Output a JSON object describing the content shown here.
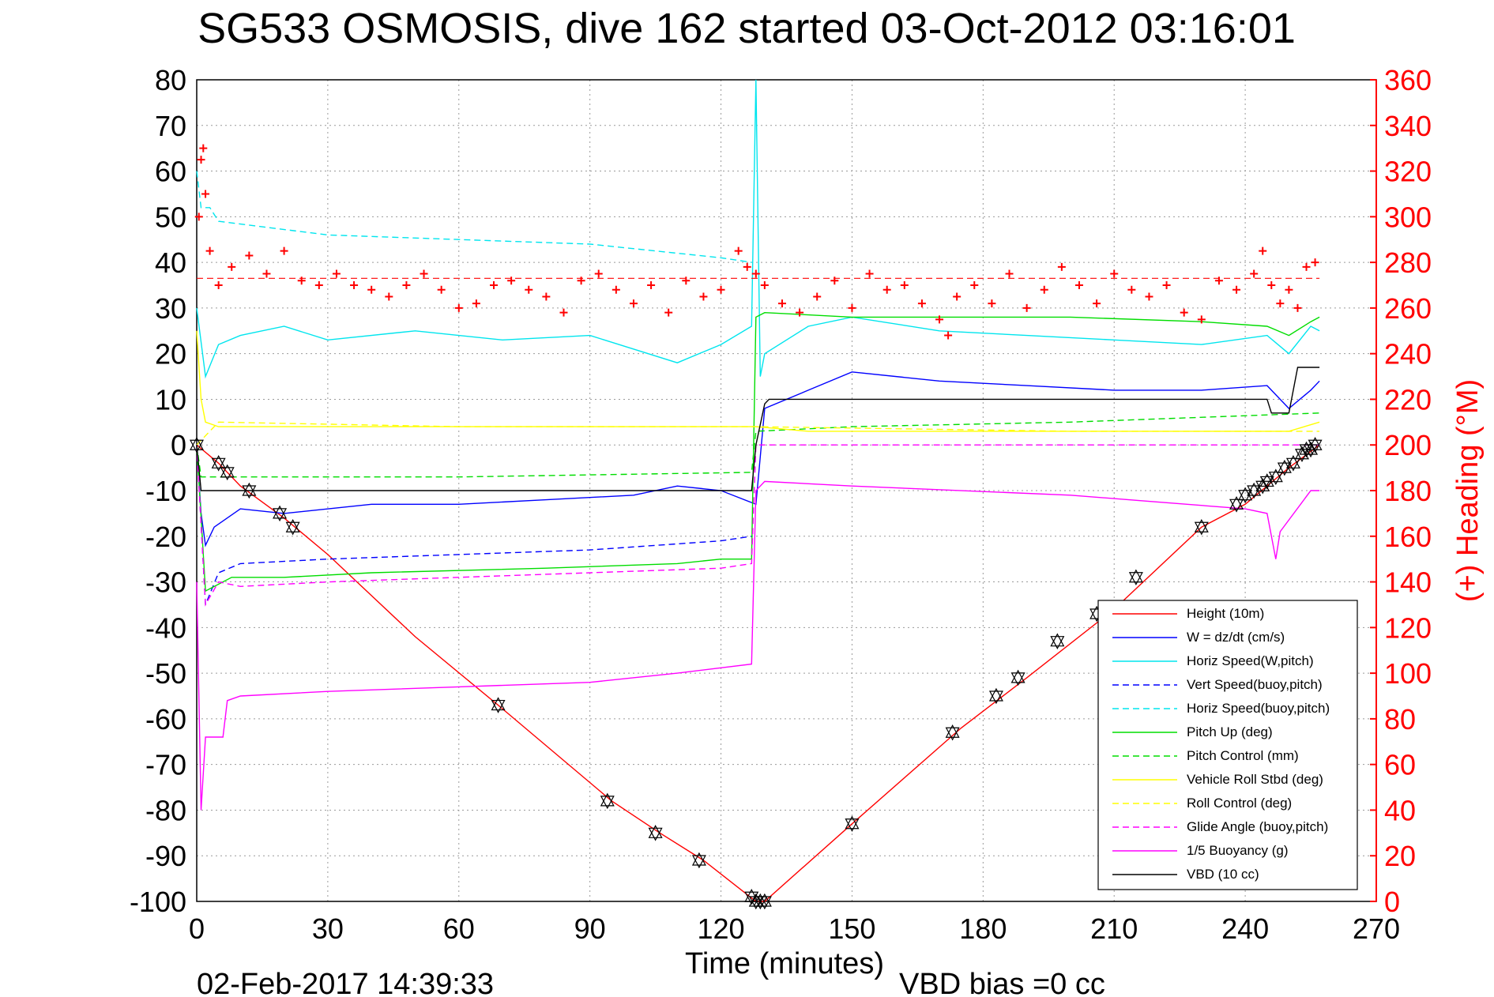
{
  "chart_data": {
    "type": "line",
    "title": "SG533 OSMOSIS, dive 162 started 03-Oct-2012 03:16:01",
    "xlabel": "Time (minutes)",
    "ylabel_right": "(+) Heading (°M)",
    "footer_date": "02-Feb-2017 14:39:33",
    "footer_bias": "VBD bias =0 cc",
    "xlim": [
      0,
      270
    ],
    "ylim": [
      -100,
      80
    ],
    "ylim_right": [
      0,
      360
    ],
    "xticks": [
      "0",
      "30",
      "60",
      "90",
      "120",
      "150",
      "180",
      "210",
      "240",
      "270"
    ],
    "yticks": [
      "80",
      "70",
      "60",
      "50",
      "40",
      "30",
      "20",
      "10",
      "0",
      "-10",
      "-20",
      "-30",
      "-40",
      "-50",
      "-60",
      "-70",
      "-80",
      "-90",
      "-100"
    ],
    "yticks_right": [
      "360",
      "340",
      "320",
      "300",
      "280",
      "260",
      "240",
      "220",
      "200",
      "180",
      "160",
      "140",
      "120",
      "100",
      "80",
      "60",
      "40",
      "20",
      "0"
    ],
    "grid": true,
    "legend_position": "bottom-right",
    "series": [
      {
        "name": "Height (10m)",
        "color": "#ff0000",
        "style": "solid",
        "x": [
          0,
          5,
          10,
          20,
          30,
          50,
          69,
          95,
          106,
          116,
          128,
          130,
          150,
          175,
          190,
          210,
          230,
          240,
          250,
          257
        ],
        "y": [
          0,
          -4,
          -9,
          -16,
          -24,
          -42,
          -57,
          -78,
          -85,
          -91,
          -100,
          -100,
          -83,
          -62,
          -51,
          -36,
          -18,
          -13,
          -5,
          0
        ]
      },
      {
        "name": "W = dz/dt (cm/s)",
        "color": "#0000ff",
        "style": "solid",
        "x": [
          0,
          1,
          2,
          4,
          10,
          20,
          40,
          60,
          80,
          100,
          110,
          120,
          128,
          130,
          140,
          150,
          170,
          190,
          210,
          230,
          245,
          250,
          255,
          257
        ],
        "y": [
          0,
          -15,
          -22,
          -18,
          -14,
          -15,
          -13,
          -13,
          -12,
          -11,
          -9,
          -10,
          -13,
          8,
          12,
          16,
          14,
          13,
          12,
          12,
          13,
          8,
          12,
          14
        ]
      },
      {
        "name": "Horiz Speed(W,pitch)",
        "color": "#00e5ee",
        "style": "solid",
        "x": [
          0,
          2,
          5,
          10,
          20,
          30,
          50,
          70,
          90,
          110,
          120,
          127,
          128,
          129,
          130,
          140,
          150,
          170,
          190,
          210,
          230,
          245,
          250,
          255,
          257
        ],
        "y": [
          30,
          15,
          22,
          24,
          26,
          23,
          25,
          23,
          24,
          18,
          22,
          26,
          80,
          15,
          20,
          26,
          28,
          25,
          24,
          23,
          22,
          24,
          20,
          26,
          25
        ]
      },
      {
        "name": "Vert Speed(buoy,pitch)",
        "color": "#0000ff",
        "style": "dashed",
        "x": [
          0,
          2,
          5,
          10,
          30,
          60,
          90,
          120,
          127
        ],
        "y": [
          0,
          -35,
          -28,
          -26,
          -25,
          -24,
          -23,
          -21,
          -20
        ]
      },
      {
        "name": "Horiz Speed(buoy,pitch)",
        "color": "#00e5ee",
        "style": "dashed",
        "x": [
          0,
          1,
          3,
          5,
          30,
          60,
          90,
          120,
          127
        ],
        "y": [
          60,
          52,
          52,
          49,
          46,
          45,
          44,
          41,
          40
        ]
      },
      {
        "name": "Pitch Up (deg)",
        "color": "#00dd00",
        "style": "solid",
        "x": [
          0,
          2,
          8,
          20,
          40,
          80,
          110,
          120,
          127,
          128,
          130,
          150,
          175,
          200,
          230,
          245,
          250,
          255,
          257
        ],
        "y": [
          0,
          -32,
          -29,
          -29,
          -28,
          -27,
          -26,
          -25,
          -25,
          28,
          29,
          28,
          28,
          28,
          27,
          26,
          24,
          27,
          28
        ]
      },
      {
        "name": "Pitch Control (mm)",
        "color": "#00dd00",
        "style": "dashed",
        "x": [
          0,
          1,
          2,
          8,
          60,
          127,
          128,
          150,
          200,
          257
        ],
        "y": [
          0,
          -7,
          -7,
          -7,
          -7,
          -6,
          3,
          4,
          5,
          7
        ]
      },
      {
        "name": "Vehicle Roll Stbd (deg)",
        "color": "#ffff00",
        "style": "solid",
        "x": [
          0,
          1,
          2,
          5,
          20,
          60,
          120,
          127,
          128,
          140,
          200,
          250,
          257
        ],
        "y": [
          25,
          10,
          5,
          4,
          4,
          4,
          4,
          4,
          4,
          3,
          3,
          3,
          5
        ]
      },
      {
        "name": "Roll Control (deg)",
        "color": "#ffff00",
        "style": "dashed",
        "x": [
          0,
          5,
          60,
          127,
          128,
          200,
          257
        ],
        "y": [
          0,
          5,
          4,
          4,
          4,
          3,
          3
        ]
      },
      {
        "name": "Glide Angle (buoy,pitch)",
        "color": "#ff00ff",
        "style": "dashed",
        "x": [
          0,
          2,
          5,
          10,
          30,
          60,
          90,
          120,
          127,
          128,
          257
        ],
        "y": [
          0,
          -35,
          -30,
          -31,
          -30,
          -29,
          -28,
          -27,
          -26,
          0,
          0
        ]
      },
      {
        "name": "1/5 Buoyancy (g)",
        "color": "#ff00ff",
        "style": "solid",
        "x": [
          0,
          1,
          2,
          6,
          7,
          10,
          30,
          60,
          90,
          110,
          127,
          128,
          130,
          150,
          200,
          240,
          245,
          247,
          248,
          255,
          257
        ],
        "y": [
          -30,
          -80,
          -64,
          -64,
          -56,
          -55,
          -54,
          -53,
          -52,
          -50,
          -48,
          -10,
          -8,
          -9,
          -11,
          -14,
          -15,
          -25,
          -19,
          -10,
          -10
        ]
      },
      {
        "name": "VBD (10 cc)",
        "color": "#000000",
        "style": "solid",
        "x": [
          0,
          1,
          2,
          127,
          128,
          130,
          131,
          245,
          246,
          250,
          252,
          257
        ],
        "y": [
          0,
          -10,
          -10,
          -10,
          0,
          9,
          10,
          10,
          7,
          7,
          17,
          17
        ]
      }
    ],
    "heading": {
      "name": "(+) Heading (°M)",
      "color": "#ff0000",
      "marker": "+",
      "x": [
        0.5,
        1,
        1.5,
        2,
        3,
        5,
        8,
        12,
        16,
        20,
        24,
        28,
        32,
        36,
        40,
        44,
        48,
        52,
        56,
        60,
        64,
        68,
        72,
        76,
        80,
        84,
        88,
        92,
        96,
        100,
        104,
        108,
        112,
        116,
        120,
        124,
        126,
        128,
        130,
        134,
        138,
        142,
        146,
        150,
        154,
        158,
        162,
        166,
        170,
        172,
        174,
        178,
        182,
        186,
        190,
        194,
        198,
        202,
        206,
        210,
        214,
        218,
        222,
        226,
        230,
        234,
        238,
        242,
        244,
        246,
        248,
        250,
        252,
        254,
        256
      ],
      "y": [
        300,
        325,
        330,
        310,
        285,
        270,
        278,
        283,
        275,
        285,
        272,
        270,
        275,
        270,
        268,
        265,
        270,
        275,
        268,
        260,
        262,
        270,
        272,
        268,
        265,
        258,
        272,
        275,
        268,
        262,
        270,
        258,
        272,
        265,
        268,
        285,
        278,
        275,
        270,
        262,
        258,
        265,
        272,
        260,
        275,
        268,
        270,
        262,
        255,
        248,
        265,
        270,
        262,
        275,
        260,
        268,
        278,
        270,
        262,
        275,
        268,
        265,
        270,
        258,
        255,
        272,
        268,
        275,
        285,
        270,
        262,
        268,
        260,
        278,
        280
      ]
    },
    "heading_reference": 273,
    "markers": {
      "name": "",
      "color": "#000000",
      "x": [
        0,
        5,
        7,
        12,
        19,
        22,
        69,
        94,
        105,
        115,
        127,
        128,
        129,
        130,
        150,
        173,
        183,
        188,
        197,
        206,
        215,
        230,
        238,
        240,
        242,
        244,
        245,
        247,
        249,
        251,
        253,
        254,
        255,
        256
      ],
      "y": [
        0,
        -4,
        -6,
        -10,
        -15,
        -18,
        -57,
        -78,
        -85,
        -91,
        -99,
        -100,
        -100,
        -100,
        -83,
        -63,
        -55,
        -51,
        -43,
        -37,
        -29,
        -18,
        -13,
        -11,
        -10,
        -9,
        -8,
        -7,
        -5,
        -4,
        -2,
        -1,
        -1,
        0
      ]
    }
  }
}
